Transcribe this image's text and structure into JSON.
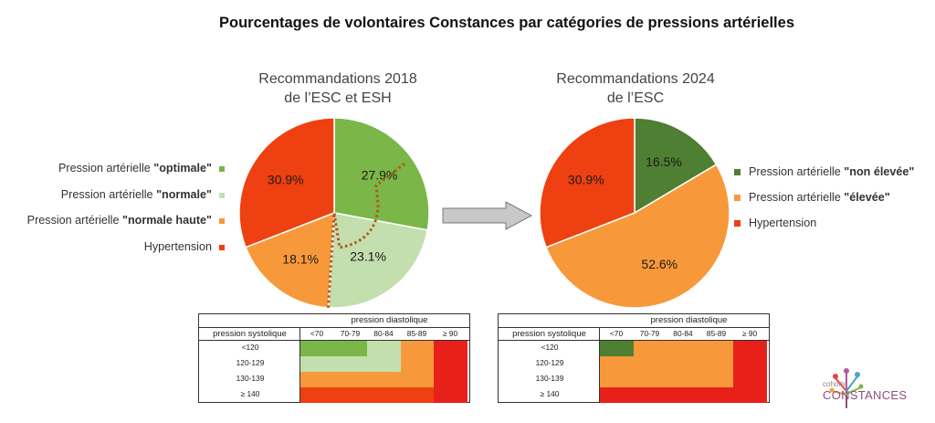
{
  "title": "Pourcentages de volontaires Constances par catégories de pressions artérielles",
  "colors": {
    "optimale": "#7ab648",
    "normale": "#c3dfae",
    "normale_haute": "#f7993a",
    "hypertension": "#ee4010",
    "table_red": "#e8201a",
    "non_elevee": "#4e7f32",
    "elevee": "#f7993a"
  },
  "chart_data": [
    {
      "type": "pie",
      "title": "Recommandations 2018\nde l’ESC et ESH",
      "title_line1": "Recommandations 2018",
      "title_line2": "de l’ESC et ESH",
      "slices": [
        {
          "name": "Pression artérielle \"optimale\"",
          "value": 27.9,
          "label": "27.9%",
          "color": "#7ab648"
        },
        {
          "name": "Pression artérielle \"normale\"",
          "value": 23.1,
          "label": "23.1%",
          "color": "#c3dfae"
        },
        {
          "name": "Pression artérielle \"normale haute\"",
          "value": 18.1,
          "label": "18.1%",
          "color": "#f7993a"
        },
        {
          "name": "Hypertension",
          "value": 30.9,
          "label": "30.9%",
          "color": "#ee4010"
        }
      ],
      "legend": [
        {
          "prefix": "Pression artérielle ",
          "bold": "\"optimale\"",
          "color": "#7ab648"
        },
        {
          "prefix": "Pression artérielle ",
          "bold": "\"normale\"",
          "color": "#c3dfae"
        },
        {
          "prefix": "Pression artérielle ",
          "bold": "\"normale haute\"",
          "color": "#f7993a"
        },
        {
          "prefix": "Hypertension",
          "bold": "",
          "color": "#ee4010"
        }
      ],
      "legend_position": "left",
      "annotation": "dotted brown line from the normal-high slice boundary through the centre, marking the 2024 'élevée' grouping"
    },
    {
      "type": "pie",
      "title": "Recommandations 2024\nde l’ESC",
      "title_line1": "Recommandations 2024",
      "title_line2": "de l’ESC",
      "slices": [
        {
          "name": "Pression artérielle \"non élevée\"",
          "value": 16.5,
          "label": "16.5%",
          "color": "#4e7f32"
        },
        {
          "name": "Pression artérielle \"élevée\"",
          "value": 52.6,
          "label": "52.6%",
          "color": "#f7993a"
        },
        {
          "name": "Hypertension",
          "value": 30.9,
          "label": "30.9%",
          "color": "#ee4010"
        }
      ],
      "legend": [
        {
          "prefix": "Pression artérielle ",
          "bold": "\"non élevée\"",
          "color": "#4e7f32"
        },
        {
          "prefix": "Pression artérielle ",
          "bold": "\"élevée\"",
          "color": "#f7993a"
        },
        {
          "prefix": "Hypertension",
          "bold": "",
          "color": "#ee4010"
        }
      ],
      "legend_position": "right"
    }
  ],
  "tables": [
    {
      "diastolic_header": "pression diastolique",
      "systolic_header": "pression systolique",
      "columns": [
        "<70",
        "70-79",
        "80-84",
        "85-89",
        "≥ 90"
      ],
      "rows": [
        "<120",
        "120-129",
        "130-139",
        "≥ 140"
      ],
      "grid": [
        [
          "optimale",
          "optimale",
          "normale",
          "normale_haute",
          "table_red"
        ],
        [
          "normale",
          "normale",
          "normale",
          "normale_haute",
          "table_red"
        ],
        [
          "normale_haute",
          "normale_haute",
          "normale_haute",
          "normale_haute",
          "table_red"
        ],
        [
          "hypertension",
          "hypertension",
          "hypertension",
          "hypertension",
          "table_red"
        ]
      ]
    },
    {
      "diastolic_header": "pression diastolique",
      "systolic_header": "pression systolique",
      "columns": [
        "<70",
        "70-79",
        "80-84",
        "85-89",
        "≥ 90"
      ],
      "rows": [
        "<120",
        "120-129",
        "130-139",
        "≥ 140"
      ],
      "grid": [
        [
          "non_elevee",
          "elevee",
          "elevee",
          "elevee",
          "table_red"
        ],
        [
          "elevee",
          "elevee",
          "elevee",
          "elevee",
          "table_red"
        ],
        [
          "elevee",
          "elevee",
          "elevee",
          "elevee",
          "table_red"
        ],
        [
          "table_red",
          "table_red",
          "table_red",
          "table_red",
          "table_red"
        ]
      ]
    }
  ],
  "logo": {
    "small_text": "cohorte",
    "big_text": "CONSTANCES"
  }
}
